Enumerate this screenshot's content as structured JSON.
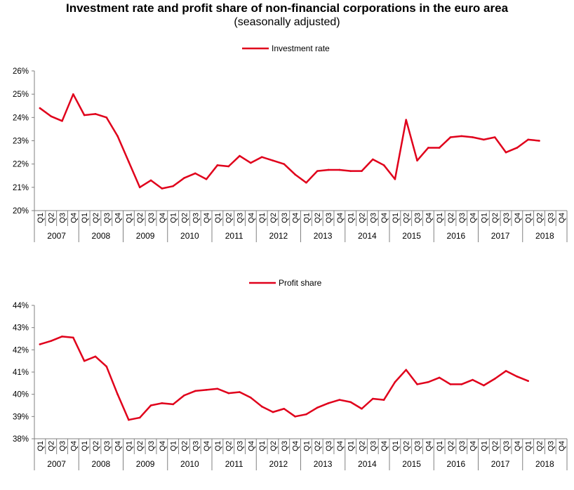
{
  "title": "Investment rate and profit share of non-financial corporations in the euro area",
  "subtitle": "(seasonally adjusted)",
  "chart_data": [
    {
      "type": "line",
      "series": [
        {
          "name": "Investment rate",
          "color": "#e0001b",
          "values": [
            24.4,
            24.05,
            23.85,
            25.0,
            24.1,
            24.15,
            24.0,
            23.2,
            22.1,
            21.0,
            21.3,
            20.95,
            21.05,
            21.4,
            21.6,
            21.35,
            21.95,
            21.9,
            22.35,
            22.05,
            22.3,
            22.15,
            22.0,
            21.55,
            21.2,
            21.7,
            21.75,
            21.75,
            21.7,
            21.7,
            22.2,
            21.95,
            21.35,
            23.9,
            22.15,
            22.7,
            22.7,
            23.15,
            23.2,
            23.15,
            23.05,
            23.15,
            22.5,
            22.7,
            23.05,
            23.0,
            null,
            null
          ]
        }
      ],
      "quarters": [
        "Q1",
        "Q2",
        "Q3",
        "Q4"
      ],
      "years": [
        "2007",
        "2008",
        "2009",
        "2010",
        "2011",
        "2012",
        "2013",
        "2014",
        "2015",
        "2016",
        "2017",
        "2018"
      ],
      "y_ticks": [
        "20%",
        "21%",
        "22%",
        "23%",
        "24%",
        "25%",
        "26%"
      ],
      "ylim": [
        20,
        26
      ],
      "legend_position": "top-center"
    },
    {
      "type": "line",
      "series": [
        {
          "name": "Profit share",
          "color": "#e0001b",
          "values": [
            42.25,
            42.4,
            42.6,
            42.55,
            41.5,
            41.7,
            41.25,
            40.0,
            38.85,
            38.95,
            39.5,
            39.6,
            39.55,
            39.95,
            40.15,
            40.2,
            40.25,
            40.05,
            40.1,
            39.85,
            39.45,
            39.2,
            39.35,
            39.0,
            39.1,
            39.4,
            39.6,
            39.75,
            39.65,
            39.35,
            39.8,
            39.75,
            40.55,
            41.1,
            40.45,
            40.55,
            40.75,
            40.45,
            40.45,
            40.65,
            40.4,
            40.7,
            41.05,
            40.8,
            40.6,
            null,
            null,
            null
          ]
        }
      ],
      "quarters": [
        "Q1",
        "Q2",
        "Q3",
        "Q4"
      ],
      "years": [
        "2007",
        "2008",
        "2009",
        "2010",
        "2011",
        "2012",
        "2013",
        "2014",
        "2015",
        "2016",
        "2017",
        "2018"
      ],
      "y_ticks": [
        "38%",
        "39%",
        "40%",
        "41%",
        "42%",
        "43%",
        "44%"
      ],
      "ylim": [
        38,
        44
      ],
      "legend_position": "top-center"
    }
  ]
}
